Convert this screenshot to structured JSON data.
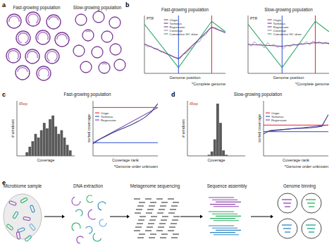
{
  "panel_labels": [
    "a",
    "b",
    "c",
    "d",
    "e"
  ],
  "panel_a": {
    "populations": [
      {
        "title": "Fast-growing population"
      },
      {
        "title": "Slow-growing population"
      }
    ]
  },
  "chart_data": [
    {
      "type": "line",
      "title": "Fast-growing population",
      "y_label": "PTR",
      "x_label": "Genome position",
      "note": "*Complete genome",
      "xlim": [
        0,
        100
      ],
      "ylim": [
        0,
        100
      ],
      "tick_labels": false,
      "legend": "top",
      "markers": [
        {
          "name": "Origin",
          "color": "#e8212b",
          "x": 83
        },
        {
          "name": "Terminus",
          "color": "#2a4fd1",
          "x": 42
        }
      ],
      "series": [
        {
          "name": "Regression",
          "color": "#7b3fa0",
          "x": [
            0,
            42,
            83,
            100
          ],
          "values": [
            51,
            25,
            80,
            70
          ]
        },
        {
          "name": "Coverage",
          "color": "#8c8c8c",
          "x": [
            0,
            4,
            8,
            12,
            16,
            20,
            24,
            28,
            32,
            36,
            40,
            44,
            48,
            52,
            56,
            60,
            64,
            68,
            72,
            76,
            80,
            84,
            88,
            92,
            96,
            100
          ],
          "values": [
            50,
            46,
            47,
            42,
            43,
            37,
            37,
            33,
            32,
            28,
            27,
            26,
            33,
            35,
            42,
            45,
            53,
            55,
            64,
            67,
            77,
            79,
            79,
            75,
            74,
            70
          ]
        },
        {
          "name": "Cumulative GC skew",
          "color": "#2eaa6a",
          "x": [
            0,
            42,
            83,
            100
          ],
          "values": [
            85,
            10,
            90,
            72
          ]
        }
      ]
    },
    {
      "type": "line",
      "title": "Slow-growing population",
      "y_label": "PTR",
      "x_label": "Genome position",
      "note": "*Complete genome",
      "xlim": [
        0,
        100
      ],
      "ylim": [
        0,
        100
      ],
      "tick_labels": false,
      "legend": "top",
      "markers": [
        {
          "name": "Origin",
          "color": "#e8212b",
          "x": 83
        },
        {
          "name": "Terminus",
          "color": "#2a4fd1",
          "x": 42
        }
      ],
      "series": [
        {
          "name": "Regression",
          "color": "#7b3fa0",
          "x": [
            0,
            42,
            83,
            100
          ],
          "values": [
            50,
            47,
            53,
            52
          ]
        },
        {
          "name": "Coverage",
          "color": "#8c8c8c",
          "x": [
            0,
            4,
            8,
            12,
            16,
            20,
            24,
            28,
            32,
            36,
            40,
            44,
            48,
            52,
            56,
            60,
            64,
            68,
            72,
            76,
            80,
            84,
            88,
            92,
            96,
            100
          ],
          "values": [
            52,
            47,
            55,
            49,
            51,
            44,
            53,
            48,
            50,
            45,
            47,
            43,
            49,
            46,
            51,
            48,
            53,
            50,
            55,
            49,
            56,
            52,
            55,
            51,
            54,
            50
          ]
        },
        {
          "name": "Cumulative GC skew",
          "color": "#2eaa6a",
          "x": [
            0,
            42,
            83,
            100
          ],
          "values": [
            85,
            10,
            90,
            72
          ]
        }
      ]
    },
    {
      "type": "histogram",
      "title": "Fast-growing population",
      "label": "iRep",
      "x_label": "Coverage",
      "y_label": "# windows",
      "xlim": [
        0,
        100
      ],
      "ylim": [
        0,
        30
      ],
      "tick_labels": false,
      "color": "#5a5a5a",
      "bins": [
        0,
        5,
        10,
        15,
        20,
        25,
        30,
        35,
        40,
        45,
        50,
        55,
        60,
        65,
        70,
        75,
        80,
        85,
        90,
        95,
        100
      ],
      "counts": [
        0,
        0,
        0,
        2,
        5,
        8,
        12,
        10,
        14,
        18,
        15,
        20,
        22,
        16,
        12,
        14,
        10,
        6,
        3,
        0
      ]
    },
    {
      "type": "line",
      "y_label": "sorted coverage",
      "x_label": "Coverage rank",
      "note": "*Genome order unknown",
      "xlim": [
        0,
        100
      ],
      "ylim": [
        0,
        100
      ],
      "tick_labels": false,
      "legend": "left",
      "markers": [
        {
          "name": "Origin",
          "color": "#e8212b",
          "y": 88
        },
        {
          "name": "Terminus",
          "color": "#2a4fd1",
          "y": 24
        }
      ],
      "series": [
        {
          "color": "#2b3a8c",
          "x": [
            0,
            10,
            20,
            30,
            40,
            50,
            60,
            70,
            80,
            90,
            100
          ],
          "values": [
            22,
            30,
            36,
            42,
            47,
            52,
            57,
            63,
            70,
            80,
            95
          ]
        },
        {
          "name": "Regression",
          "color": "#7b3fa0",
          "x": [
            0,
            100
          ],
          "values": [
            24,
            88
          ]
        }
      ]
    },
    {
      "type": "histogram",
      "title": "Slow-growing population",
      "label": "iRep",
      "x_label": "Coverage",
      "y_label": "# windows",
      "xlim": [
        0,
        100
      ],
      "ylim": [
        0,
        100
      ],
      "tick_labels": false,
      "color": "#5a5a5a",
      "bins": [
        0,
        5,
        10,
        15,
        20,
        25,
        30,
        35,
        40,
        45,
        50,
        55,
        60,
        65,
        70,
        75,
        80,
        85,
        90,
        95,
        100
      ],
      "counts": [
        0,
        0,
        0,
        0,
        0,
        0,
        0,
        2,
        8,
        30,
        95,
        60,
        10,
        2,
        0,
        0,
        0,
        0,
        0,
        0
      ]
    },
    {
      "type": "line",
      "y_label": "sorted coverage",
      "x_label": "Coverage rank",
      "note": "*Genome order unknown",
      "xlim": [
        0,
        100
      ],
      "ylim": [
        0,
        100
      ],
      "tick_labels": false,
      "legend": "left",
      "markers": [
        {
          "name": "Origin",
          "color": "#e8212b",
          "y": 56
        },
        {
          "name": "Terminus",
          "color": "#2a4fd1",
          "y": 44
        }
      ],
      "series": [
        {
          "color": "#2b3a8c",
          "x": [
            0,
            10,
            20,
            30,
            40,
            50,
            60,
            70,
            80,
            90,
            100
          ],
          "values": [
            40,
            46,
            47,
            48,
            49,
            50,
            50,
            51,
            52,
            54,
            75
          ]
        },
        {
          "name": "Regression",
          "color": "#7b3fa0",
          "x": [
            0,
            100
          ],
          "values": [
            44,
            56
          ]
        }
      ]
    }
  ],
  "panel_e": {
    "steps": [
      "Microbiome sample",
      "DNA extraction",
      "Metagenome sequencing",
      "Sequence assembly",
      "Genome binning"
    ]
  }
}
